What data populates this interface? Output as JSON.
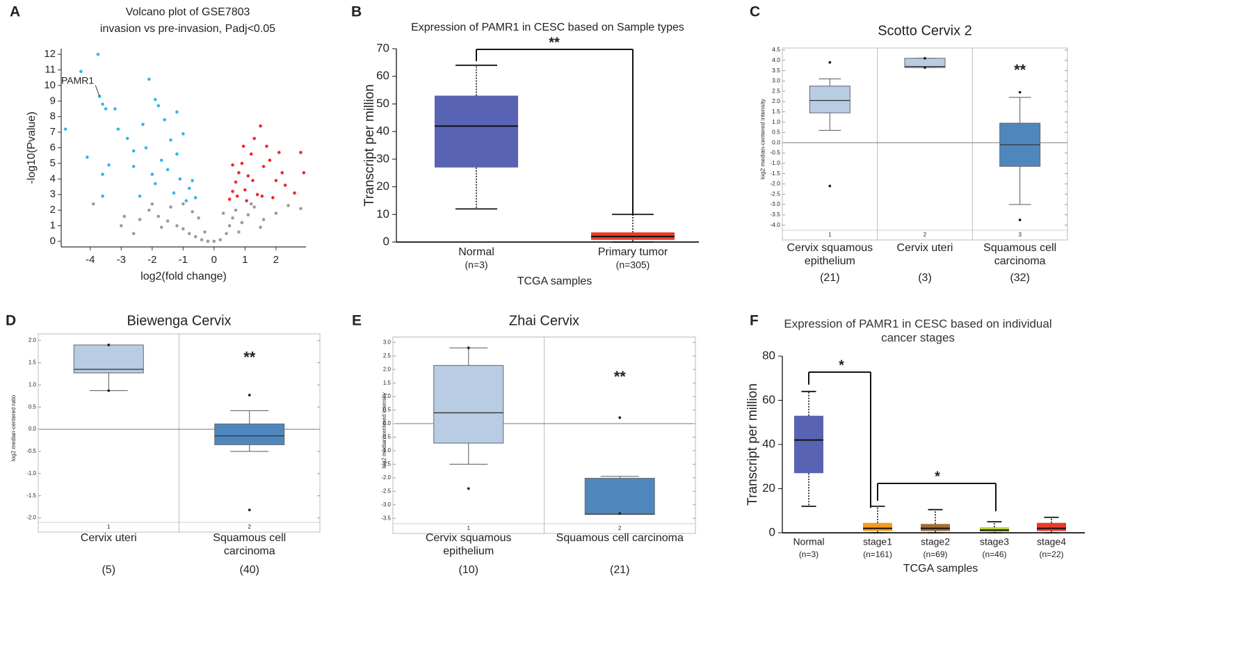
{
  "chart_data": [
    {
      "type": "scatter",
      "panel": "A",
      "title": "Volcano plot of GSE7803",
      "subtitle": "invasion vs pre-invasion, Padj<0.05",
      "x_label": "log2(fold change)",
      "y_label": "-log10(Pvalue)",
      "xlim": [
        -4.94,
        2.97
      ],
      "ylim": [
        -0.36,
        12.36
      ],
      "xticks": [
        -4,
        -3,
        -2,
        -1,
        0,
        1,
        2
      ],
      "yticks": [
        0,
        1,
        2,
        3,
        4,
        5,
        6,
        7,
        8,
        9,
        10,
        11,
        12
      ],
      "annotations": [
        {
          "text": "PAMR1",
          "x": -3.7,
          "y": 9.3
        }
      ],
      "series": [
        {
          "color": "#9b9b9b",
          "x": [
            -3.9,
            -2.1,
            -1.8,
            -1.5,
            -1.2,
            -1,
            -0.8,
            -0.6,
            -0.4,
            -0.2,
            0,
            0.2,
            0.4,
            0.5,
            0.6,
            0.7,
            0.9,
            1.1,
            1.3,
            1.6,
            2.0,
            2.4,
            2.8,
            -2.4,
            -2.9,
            -1.4,
            -0.5,
            -0.3,
            0.3,
            -1.7,
            -2.6,
            1.5,
            -1,
            -0.7,
            0.8,
            1.2,
            -2.0,
            -3.0
          ],
          "values": [
            2.4,
            2.0,
            1.6,
            1.3,
            1.0,
            0.8,
            0.5,
            0.3,
            0.1,
            0,
            0,
            0.1,
            0.5,
            1.0,
            1.5,
            2.0,
            1.2,
            1.7,
            2.2,
            1.4,
            1.8,
            2.3,
            2.1,
            1.4,
            1.6,
            2.2,
            1.5,
            0.6,
            1.8,
            0.9,
            0.5,
            0.9,
            2.4,
            1.9,
            0.6,
            2.4,
            2.4,
            1.0
          ]
        },
        {
          "color": "#33b5ec",
          "x": [
            -4.3,
            -3.75,
            -3.7,
            -3.6,
            -3.5,
            -3.2,
            -3.1,
            -4.8,
            -2.1,
            -1.9,
            -1.8,
            -1.2,
            -1.6,
            -2.3,
            -2.8,
            -2.6,
            -2.2,
            -1.4,
            -1,
            -1.7,
            -2.0,
            -1.5,
            -1.1,
            -0.8,
            -0.6,
            -1.3,
            -0.9,
            -2.4,
            -4.1,
            -3.6,
            -3.4,
            -1.9,
            -0.7,
            -1.2,
            -3.6,
            -2.6
          ],
          "values": [
            10.9,
            12,
            9.3,
            8.8,
            8.5,
            8.5,
            7.2,
            7.2,
            10.4,
            9.1,
            8.7,
            8.3,
            7.8,
            7.5,
            6.6,
            5.8,
            6.0,
            6.5,
            6.9,
            5.2,
            4.3,
            4.6,
            4.0,
            3.4,
            2.8,
            3.1,
            2.6,
            2.9,
            5.4,
            2.9,
            4.9,
            3.7,
            3.9,
            5.6,
            4.3,
            4.8
          ]
        },
        {
          "color": "#ee2a2a",
          "x": [
            0.5,
            0.6,
            0.7,
            0.8,
            0.9,
            1.0,
            1.1,
            1.2,
            1.3,
            1.5,
            1.4,
            1.6,
            1.8,
            2.0,
            2.2,
            2.3,
            2.6,
            2.8,
            2.9,
            1.7,
            0.95,
            1.05,
            1.9,
            0.75,
            1.25,
            2.1,
            0.6,
            1.55
          ],
          "values": [
            2.7,
            3.2,
            3.8,
            4.4,
            5.0,
            3.3,
            4.2,
            5.6,
            6.6,
            7.4,
            3.0,
            4.8,
            5.2,
            3.9,
            4.4,
            3.6,
            3.1,
            5.7,
            4.4,
            6.1,
            6.1,
            2.6,
            2.8,
            2.9,
            3.9,
            5.7,
            4.9,
            2.9
          ]
        }
      ]
    },
    {
      "type": "box",
      "panel": "B",
      "title": "Expression of PAMR1 in CESC based on Sample types",
      "x_label": "TCGA samples",
      "y_label": "Transcript per million",
      "categories": [
        "Normal",
        "Primary tumor"
      ],
      "counts": [
        "(n=3)",
        "(n=305)"
      ],
      "ylim": [
        0,
        70
      ],
      "yticks": [
        0,
        10,
        20,
        30,
        40,
        50,
        60,
        70
      ],
      "annotations": [
        {
          "text": "**"
        }
      ],
      "boxes": [
        {
          "color": "#5963b4",
          "min": 12,
          "q1": 27,
          "median": 42,
          "q3": 53,
          "max": 64
        },
        {
          "color": "#ea3a2b",
          "min": 0,
          "q1": 0.8,
          "median": 2,
          "q3": 3.5,
          "max": 10
        }
      ]
    },
    {
      "type": "box",
      "panel": "C",
      "title": "Scotto Cervix 2",
      "y_label": "log2 median-centered intensity",
      "categories": [
        "Cervix squamous epithelium",
        "Cervix uteri",
        "Squamous cell carcinoma"
      ],
      "counts": [
        "(21)",
        "(3)",
        "(32)"
      ],
      "column_labels": [
        "1",
        "2",
        "3"
      ],
      "ylim": [
        -4.25,
        4.6
      ],
      "yticks": [
        4.5,
        {
          "value": 4,
          "label": "4.0"
        },
        3.5,
        {
          "value": 3,
          "label": "3.0"
        },
        2.5,
        {
          "value": 2,
          "label": "2.0"
        },
        1.5,
        {
          "value": 1,
          "label": "1.0"
        },
        0.5,
        {
          "value": 0,
          "label": "0.0"
        },
        -0.5,
        {
          "value": -1,
          "label": "-1.0"
        },
        -1.5,
        {
          "value": -2,
          "label": "-2.0"
        },
        -2.5,
        {
          "value": -3,
          "label": "-3.0"
        },
        -3.5,
        {
          "value": -4,
          "label": "-4.0"
        }
      ],
      "annotations": [
        {
          "text": "**"
        }
      ],
      "boxes": [
        {
          "color": "#b8cce4",
          "min": 0.6,
          "q1": 1.45,
          "median": 2.05,
          "q3": 2.75,
          "max": 3.1,
          "outliers": [
            3.9,
            -2.1
          ]
        },
        {
          "color": "#b8cce4",
          "min": 3.65,
          "q1": 3.65,
          "median": 3.7,
          "q3": 4.1,
          "max": 4.1,
          "outliers": [
            4.1,
            3.65
          ]
        },
        {
          "color": "#4f87bd",
          "min": -3.0,
          "q1": -1.15,
          "median": -0.1,
          "q3": 0.95,
          "max": 2.2,
          "outliers": [
            2.45,
            -3.75
          ]
        }
      ]
    },
    {
      "type": "box",
      "panel": "D",
      "title": "Biewenga Cervix",
      "y_label": "log2 median-centered ratio",
      "categories": [
        "Cervix uteri",
        "Squamous cell carcinoma"
      ],
      "counts": [
        "(5)",
        "(40)"
      ],
      "column_labels": [
        "1",
        "2"
      ],
      "ylim": [
        -2.1,
        2.15
      ],
      "yticks": [
        {
          "value": 2,
          "label": "2.0"
        },
        1.5,
        {
          "value": 1,
          "label": "1.0"
        },
        0.5,
        {
          "value": 0,
          "label": "0.0"
        },
        -0.5,
        {
          "value": -1,
          "label": "-1.0"
        },
        -1.5,
        {
          "value": -2,
          "label": "-2.0"
        }
      ],
      "annotations": [
        {
          "text": "**"
        }
      ],
      "boxes": [
        {
          "color": "#b8cce4",
          "min": 0.87,
          "q1": 1.27,
          "median": 1.35,
          "q3": 1.9,
          "max": 1.9,
          "outliers": [
            1.9,
            0.87
          ]
        },
        {
          "color": "#4f87bd",
          "min": -0.5,
          "q1": -0.35,
          "median": -0.15,
          "q3": 0.12,
          "max": 0.42,
          "outliers": [
            0.77,
            -1.82
          ]
        }
      ]
    },
    {
      "type": "box",
      "panel": "E",
      "title": "Zhai Cervix",
      "y_label": "log2 median-centered intensity",
      "categories": [
        "Cervix squamous epithelium",
        "Squamous cell carcinoma"
      ],
      "counts": [
        "(10)",
        "(21)"
      ],
      "column_labels": [
        "1",
        "2"
      ],
      "ylim": [
        -3.7,
        3.2
      ],
      "yticks": [
        {
          "value": 3,
          "label": "3.0"
        },
        2.5,
        {
          "value": 2,
          "label": "2.0"
        },
        1.5,
        {
          "value": 1,
          "label": "1.0"
        },
        0.5,
        {
          "value": 0,
          "label": "0.0"
        },
        -0.5,
        {
          "value": -1,
          "label": "-1.0"
        },
        -1.5,
        {
          "value": -2,
          "label": "-2.0"
        },
        -2.5,
        {
          "value": -3,
          "label": "-3.0"
        },
        -3.5
      ],
      "annotations": [
        {
          "text": "**"
        }
      ],
      "boxes": [
        {
          "color": "#b8cce4",
          "min": -1.5,
          "q1": -0.72,
          "median": 0.4,
          "q3": 2.15,
          "max": 2.8,
          "outliers": [
            2.8,
            -2.4
          ]
        },
        {
          "color": "#4f87bd",
          "min": -3.35,
          "q1": -3.35,
          "median": -3.35,
          "q3": -2.02,
          "max": -1.95,
          "outliers": [
            0.22,
            -3.32
          ]
        }
      ]
    },
    {
      "type": "box",
      "panel": "F",
      "title": "Expression of PAMR1 in CESC based on individual cancer stages",
      "x_label": "TCGA samples",
      "y_label": "Transcript per million",
      "categories": [
        "Normal",
        "stage1",
        "stage2",
        "stage3",
        "stage4"
      ],
      "counts": [
        "(n=3)",
        "(n=161)",
        "(n=69)",
        "(n=46)",
        "(n=22)"
      ],
      "ylim": [
        0,
        80
      ],
      "yticks": [
        0,
        20,
        40,
        60,
        80
      ],
      "annotations": [
        {
          "text": "*"
        },
        {
          "text": "*"
        }
      ],
      "boxes": [
        {
          "color": "#5963b4",
          "min": 12,
          "q1": 27,
          "median": 42,
          "q3": 53,
          "max": 64
        },
        {
          "color": "#f39c1f",
          "min": 0,
          "q1": 0.8,
          "median": 2,
          "q3": 4.5,
          "max": 12
        },
        {
          "color": "#a0703a",
          "min": 0,
          "q1": 0.8,
          "median": 2,
          "q3": 4,
          "max": 10.5
        },
        {
          "color": "#b5d334",
          "min": 0,
          "q1": 0.5,
          "median": 1.2,
          "q3": 2.5,
          "max": 5
        },
        {
          "color": "#ea3a2b",
          "min": 0,
          "q1": 0.8,
          "median": 2,
          "q3": 4.5,
          "max": 7
        }
      ]
    }
  ]
}
